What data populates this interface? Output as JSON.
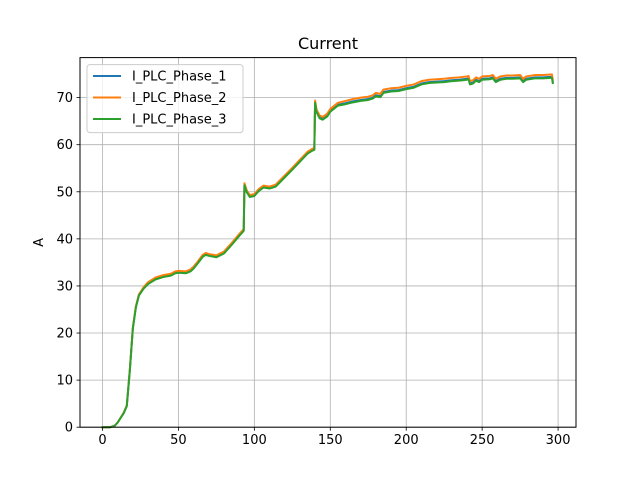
{
  "chart_data": {
    "type": "line",
    "title": "Current",
    "xlabel": "",
    "ylabel": "A",
    "xlim": [
      -14.8,
      311.8
    ],
    "ylim": [
      0,
      78.5
    ],
    "xticks": [
      0,
      50,
      100,
      150,
      200,
      250,
      300
    ],
    "yticks": [
      0,
      10,
      20,
      30,
      40,
      50,
      60,
      70
    ],
    "grid": true,
    "legend": "top-left",
    "series": [
      {
        "name": "I_PLC_Phase_1",
        "color": "#1f77b4",
        "points": [
          [
            0,
            0
          ],
          [
            5,
            0
          ],
          [
            8,
            0.3
          ],
          [
            10,
            1
          ],
          [
            14,
            3
          ],
          [
            16,
            4.5
          ],
          [
            18,
            12
          ],
          [
            20,
            21
          ],
          [
            22,
            25.5
          ],
          [
            24,
            28
          ],
          [
            27,
            29.5
          ],
          [
            30,
            30.5
          ],
          [
            35,
            31.5
          ],
          [
            40,
            32
          ],
          [
            45,
            32.3
          ],
          [
            48,
            32.8
          ],
          [
            50,
            32.9
          ],
          [
            55,
            32.8
          ],
          [
            58,
            33.2
          ],
          [
            60,
            33.8
          ],
          [
            63,
            35
          ],
          [
            66,
            36.3
          ],
          [
            68,
            36.7
          ],
          [
            70,
            36.5
          ],
          [
            75,
            36.2
          ],
          [
            80,
            37
          ],
          [
            85,
            38.8
          ],
          [
            90,
            40.7
          ],
          [
            93,
            41.8
          ],
          [
            93.5,
            51.5
          ],
          [
            95,
            50
          ],
          [
            97,
            49
          ],
          [
            100,
            49.2
          ],
          [
            103,
            50.3
          ],
          [
            106,
            51
          ],
          [
            110,
            50.8
          ],
          [
            114,
            51.2
          ],
          [
            118,
            52.5
          ],
          [
            125,
            54.8
          ],
          [
            130,
            56.5
          ],
          [
            135,
            58.2
          ],
          [
            138,
            58.8
          ],
          [
            139.5,
            59
          ],
          [
            140,
            69
          ],
          [
            141,
            67
          ],
          [
            143,
            65.8
          ],
          [
            145,
            65.5
          ],
          [
            148,
            66.2
          ],
          [
            150,
            67.2
          ],
          [
            155,
            68.5
          ],
          [
            160,
            68.8
          ],
          [
            165,
            69.2
          ],
          [
            170,
            69.5
          ],
          [
            175,
            69.7
          ],
          [
            178,
            70
          ],
          [
            180,
            70.5
          ],
          [
            183,
            70.3
          ],
          [
            185,
            71.2
          ],
          [
            190,
            71.5
          ],
          [
            195,
            71.6
          ],
          [
            200,
            72
          ],
          [
            205,
            72.3
          ],
          [
            210,
            73
          ],
          [
            215,
            73.3
          ],
          [
            220,
            73.4
          ],
          [
            225,
            73.5
          ],
          [
            230,
            73.7
          ],
          [
            235,
            73.8
          ],
          [
            240,
            74
          ],
          [
            241,
            74.1
          ],
          [
            242,
            73
          ],
          [
            244,
            73.2
          ],
          [
            246,
            73.8
          ],
          [
            248,
            73.5
          ],
          [
            250,
            74
          ],
          [
            255,
            74.1
          ],
          [
            257,
            74.3
          ],
          [
            259,
            73.5
          ],
          [
            262,
            74
          ],
          [
            266,
            74.2
          ],
          [
            270,
            74.2
          ],
          [
            275,
            74.3
          ],
          [
            277,
            73.5
          ],
          [
            279,
            74
          ],
          [
            285,
            74.3
          ],
          [
            290,
            74.3
          ],
          [
            295,
            74.4
          ],
          [
            296,
            74.4
          ],
          [
            296.5,
            73.3
          ]
        ]
      },
      {
        "name": "I_PLC_Phase_2",
        "color": "#ff7f0e",
        "points": [
          [
            0,
            0
          ],
          [
            5,
            0
          ],
          [
            8,
            0.3
          ],
          [
            10,
            1
          ],
          [
            14,
            3.1
          ],
          [
            16,
            4.6
          ],
          [
            18,
            12.2
          ],
          [
            20,
            21.2
          ],
          [
            22,
            25.7
          ],
          [
            24,
            28.2
          ],
          [
            27,
            29.7
          ],
          [
            30,
            30.8
          ],
          [
            35,
            31.8
          ],
          [
            40,
            32.3
          ],
          [
            45,
            32.6
          ],
          [
            48,
            33.1
          ],
          [
            50,
            33.2
          ],
          [
            55,
            33.1
          ],
          [
            58,
            33.5
          ],
          [
            60,
            34.1
          ],
          [
            63,
            35.3
          ],
          [
            66,
            36.6
          ],
          [
            68,
            37
          ],
          [
            70,
            36.8
          ],
          [
            75,
            36.5
          ],
          [
            80,
            37.3
          ],
          [
            85,
            39.1
          ],
          [
            90,
            41
          ],
          [
            93,
            42.1
          ],
          [
            93.5,
            51.8
          ],
          [
            95,
            50.3
          ],
          [
            97,
            49.3
          ],
          [
            100,
            49.5
          ],
          [
            103,
            50.6
          ],
          [
            106,
            51.3
          ],
          [
            110,
            51.1
          ],
          [
            114,
            51.5
          ],
          [
            118,
            52.8
          ],
          [
            125,
            55.1
          ],
          [
            130,
            56.8
          ],
          [
            135,
            58.5
          ],
          [
            138,
            59.1
          ],
          [
            139.5,
            59.3
          ],
          [
            140,
            69.4
          ],
          [
            141,
            67.4
          ],
          [
            143,
            66.2
          ],
          [
            145,
            65.9
          ],
          [
            148,
            66.6
          ],
          [
            150,
            67.6
          ],
          [
            155,
            68.9
          ],
          [
            160,
            69.3
          ],
          [
            165,
            69.7
          ],
          [
            170,
            70
          ],
          [
            175,
            70.2
          ],
          [
            178,
            70.5
          ],
          [
            180,
            71
          ],
          [
            183,
            70.8
          ],
          [
            185,
            71.7
          ],
          [
            190,
            72
          ],
          [
            195,
            72.1
          ],
          [
            200,
            72.5
          ],
          [
            205,
            72.8
          ],
          [
            210,
            73.5
          ],
          [
            215,
            73.8
          ],
          [
            220,
            73.9
          ],
          [
            225,
            74
          ],
          [
            230,
            74.2
          ],
          [
            235,
            74.3
          ],
          [
            240,
            74.5
          ],
          [
            241,
            74.6
          ],
          [
            242,
            73.5
          ],
          [
            244,
            73.7
          ],
          [
            246,
            74.3
          ],
          [
            248,
            74
          ],
          [
            250,
            74.5
          ],
          [
            255,
            74.6
          ],
          [
            257,
            74.8
          ],
          [
            259,
            74
          ],
          [
            262,
            74.5
          ],
          [
            266,
            74.7
          ],
          [
            270,
            74.7
          ],
          [
            275,
            74.8
          ],
          [
            277,
            74
          ],
          [
            279,
            74.5
          ],
          [
            285,
            74.8
          ],
          [
            290,
            74.8
          ],
          [
            295,
            74.9
          ],
          [
            296,
            74.9
          ],
          [
            296.5,
            73.8
          ]
        ]
      },
      {
        "name": "I_PLC_Phase_3",
        "color": "#2ca02c",
        "points": [
          [
            0,
            0
          ],
          [
            5,
            0
          ],
          [
            8,
            0.3
          ],
          [
            10,
            1
          ],
          [
            14,
            3
          ],
          [
            16,
            4.5
          ],
          [
            18,
            12
          ],
          [
            20,
            21
          ],
          [
            22,
            25.5
          ],
          [
            24,
            28
          ],
          [
            27,
            29.4
          ],
          [
            30,
            30.4
          ],
          [
            35,
            31.4
          ],
          [
            40,
            31.9
          ],
          [
            45,
            32.2
          ],
          [
            48,
            32.7
          ],
          [
            50,
            32.8
          ],
          [
            55,
            32.7
          ],
          [
            58,
            33.1
          ],
          [
            60,
            33.7
          ],
          [
            63,
            34.9
          ],
          [
            66,
            36.2
          ],
          [
            68,
            36.6
          ],
          [
            70,
            36.4
          ],
          [
            75,
            36.1
          ],
          [
            80,
            36.9
          ],
          [
            85,
            38.7
          ],
          [
            90,
            40.6
          ],
          [
            93,
            41.7
          ],
          [
            93.5,
            51.4
          ],
          [
            95,
            49.9
          ],
          [
            97,
            48.9
          ],
          [
            100,
            49.1
          ],
          [
            103,
            50.2
          ],
          [
            106,
            50.9
          ],
          [
            110,
            50.7
          ],
          [
            114,
            51.1
          ],
          [
            118,
            52.4
          ],
          [
            125,
            54.7
          ],
          [
            130,
            56.4
          ],
          [
            135,
            58.1
          ],
          [
            138,
            58.7
          ],
          [
            139.5,
            58.9
          ],
          [
            140,
            68.9
          ],
          [
            141,
            66.9
          ],
          [
            143,
            65.6
          ],
          [
            145,
            65.3
          ],
          [
            148,
            66
          ],
          [
            150,
            67
          ],
          [
            155,
            68.3
          ],
          [
            160,
            68.6
          ],
          [
            165,
            69
          ],
          [
            170,
            69.3
          ],
          [
            175,
            69.5
          ],
          [
            178,
            69.8
          ],
          [
            180,
            70.3
          ],
          [
            183,
            70.1
          ],
          [
            185,
            71
          ],
          [
            190,
            71.3
          ],
          [
            195,
            71.4
          ],
          [
            200,
            71.8
          ],
          [
            205,
            72.1
          ],
          [
            210,
            72.8
          ],
          [
            215,
            73.1
          ],
          [
            220,
            73.2
          ],
          [
            225,
            73.3
          ],
          [
            230,
            73.5
          ],
          [
            235,
            73.6
          ],
          [
            240,
            73.8
          ],
          [
            241,
            73.9
          ],
          [
            242,
            72.8
          ],
          [
            244,
            73
          ],
          [
            246,
            73.6
          ],
          [
            248,
            73.3
          ],
          [
            250,
            73.8
          ],
          [
            255,
            73.9
          ],
          [
            257,
            74.1
          ],
          [
            259,
            73.3
          ],
          [
            262,
            73.8
          ],
          [
            266,
            74
          ],
          [
            270,
            74
          ],
          [
            275,
            74.1
          ],
          [
            277,
            73.3
          ],
          [
            279,
            73.8
          ],
          [
            285,
            74.1
          ],
          [
            290,
            74.1
          ],
          [
            295,
            74.2
          ],
          [
            296,
            74.2
          ],
          [
            296.5,
            73.1
          ]
        ]
      }
    ]
  }
}
